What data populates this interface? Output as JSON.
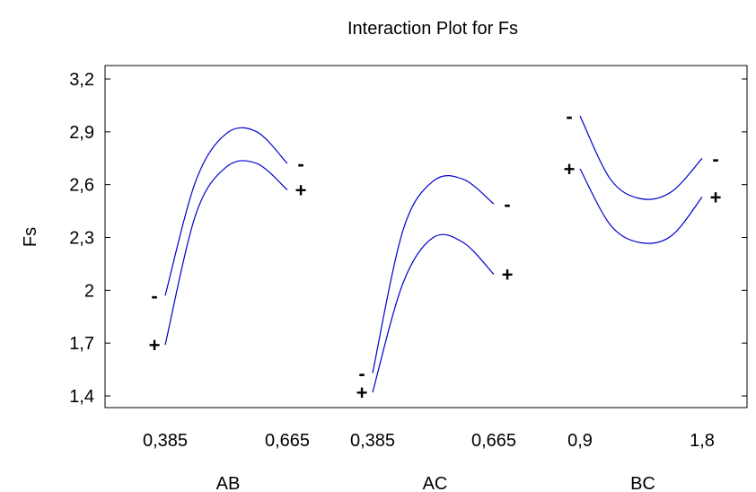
{
  "chart_data": {
    "type": "line",
    "title": "Interaction Plot for Fs",
    "ylabel": "Fs",
    "ylim": [
      1.4,
      3.2
    ],
    "yticks": [
      "1,4",
      "1,7",
      "2",
      "2,3",
      "2,6",
      "2,9",
      "3,2"
    ],
    "ytick_values": [
      1.4,
      1.7,
      2.0,
      2.3,
      2.6,
      2.9,
      3.2
    ],
    "grid": false,
    "line_color": "#0000cc",
    "panels": [
      {
        "label": "AB",
        "x_ticks": [
          "0,385",
          "0,665"
        ],
        "x_tick_values": [
          0.385,
          0.665
        ],
        "xlim": [
          0.385,
          0.665
        ],
        "series": [
          {
            "name": "-",
            "x": [
              0.385,
              0.455,
              0.525,
              0.595,
              0.665
            ],
            "y": [
              1.97,
              2.62,
              2.89,
              2.9,
              2.72
            ],
            "label_side": "both"
          },
          {
            "name": "+",
            "x": [
              0.385,
              0.455,
              0.525,
              0.595,
              0.665
            ],
            "y": [
              1.69,
              2.43,
              2.7,
              2.72,
              2.57
            ],
            "label_side": "both"
          }
        ]
      },
      {
        "label": "AC",
        "x_ticks": [
          "0,385",
          "0,665"
        ],
        "x_tick_values": [
          0.385,
          0.665
        ],
        "xlim": [
          0.385,
          0.665
        ],
        "series": [
          {
            "name": "-",
            "x": [
              0.385,
              0.455,
              0.525,
              0.595,
              0.665
            ],
            "y": [
              1.53,
              2.34,
              2.62,
              2.63,
              2.49
            ],
            "label_side": "both"
          },
          {
            "name": "+",
            "x": [
              0.385,
              0.455,
              0.525,
              0.595,
              0.665
            ],
            "y": [
              1.42,
              2.04,
              2.3,
              2.27,
              2.09
            ],
            "label_side": "both"
          }
        ]
      },
      {
        "label": "BC",
        "x_ticks": [
          "0,9",
          "1,8"
        ],
        "x_tick_values": [
          0.9,
          1.8
        ],
        "xlim": [
          0.9,
          1.8
        ],
        "series": [
          {
            "name": "-",
            "x": [
              0.9,
              1.125,
              1.35,
              1.575,
              1.8
            ],
            "y": [
              2.99,
              2.63,
              2.52,
              2.56,
              2.75
            ],
            "label_side": "both"
          },
          {
            "name": "+",
            "x": [
              0.9,
              1.125,
              1.35,
              1.575,
              1.8
            ],
            "y": [
              2.69,
              2.37,
              2.27,
              2.31,
              2.53
            ],
            "label_side": "both"
          }
        ]
      }
    ]
  }
}
